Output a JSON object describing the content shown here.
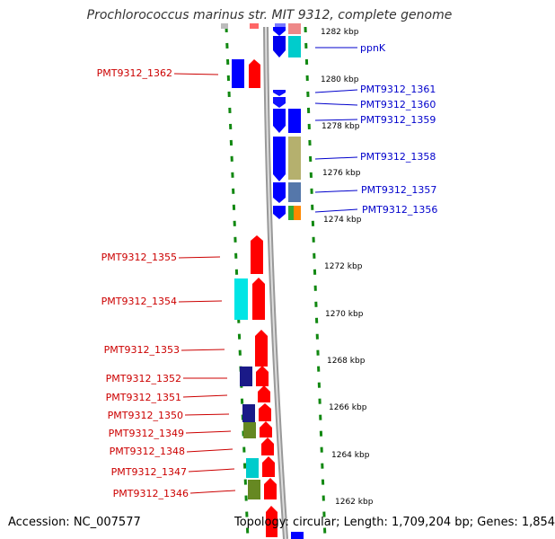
{
  "title": "Prochlorococcus marinus str. MIT 9312, complete genome",
  "accession": "Accession: NC_007577",
  "topology": "Topology: circular; Length: 1,709,204 bp; Genes: 1,854",
  "kbp_ticks": [
    "1282 kbp",
    "1280 kbp",
    "1278 kbp",
    "1276 kbp",
    "1274 kbp",
    "1272 kbp",
    "1270 kbp",
    "1268 kbp",
    "1266 kbp",
    "1264 kbp",
    "1262 kbp"
  ],
  "left_genes": [
    "PMT9312_1362",
    "PMT9312_1355",
    "PMT9312_1354",
    "PMT9312_1353",
    "PMT9312_1352",
    "PMT9312_1351",
    "PMT9312_1350",
    "PMT9312_1349",
    "PMT9312_1348",
    "PMT9312_1347",
    "PMT9312_1346"
  ],
  "right_genes": [
    "ppnK",
    "PMT9312_1361",
    "PMT9312_1360",
    "PMT9312_1359",
    "PMT9312_1358",
    "PMT9312_1357",
    "PMT9312_1356"
  ],
  "colors": {
    "forward_strand": "#ff0000",
    "reverse_strand": "#0000ff",
    "left_label": "#cc0000",
    "right_label": "#0000cc",
    "tick_dash": "#006600",
    "backbone": "#888888"
  },
  "icons": [
    "gene-arrow-forward",
    "gene-arrow-reverse",
    "cog-box"
  ]
}
